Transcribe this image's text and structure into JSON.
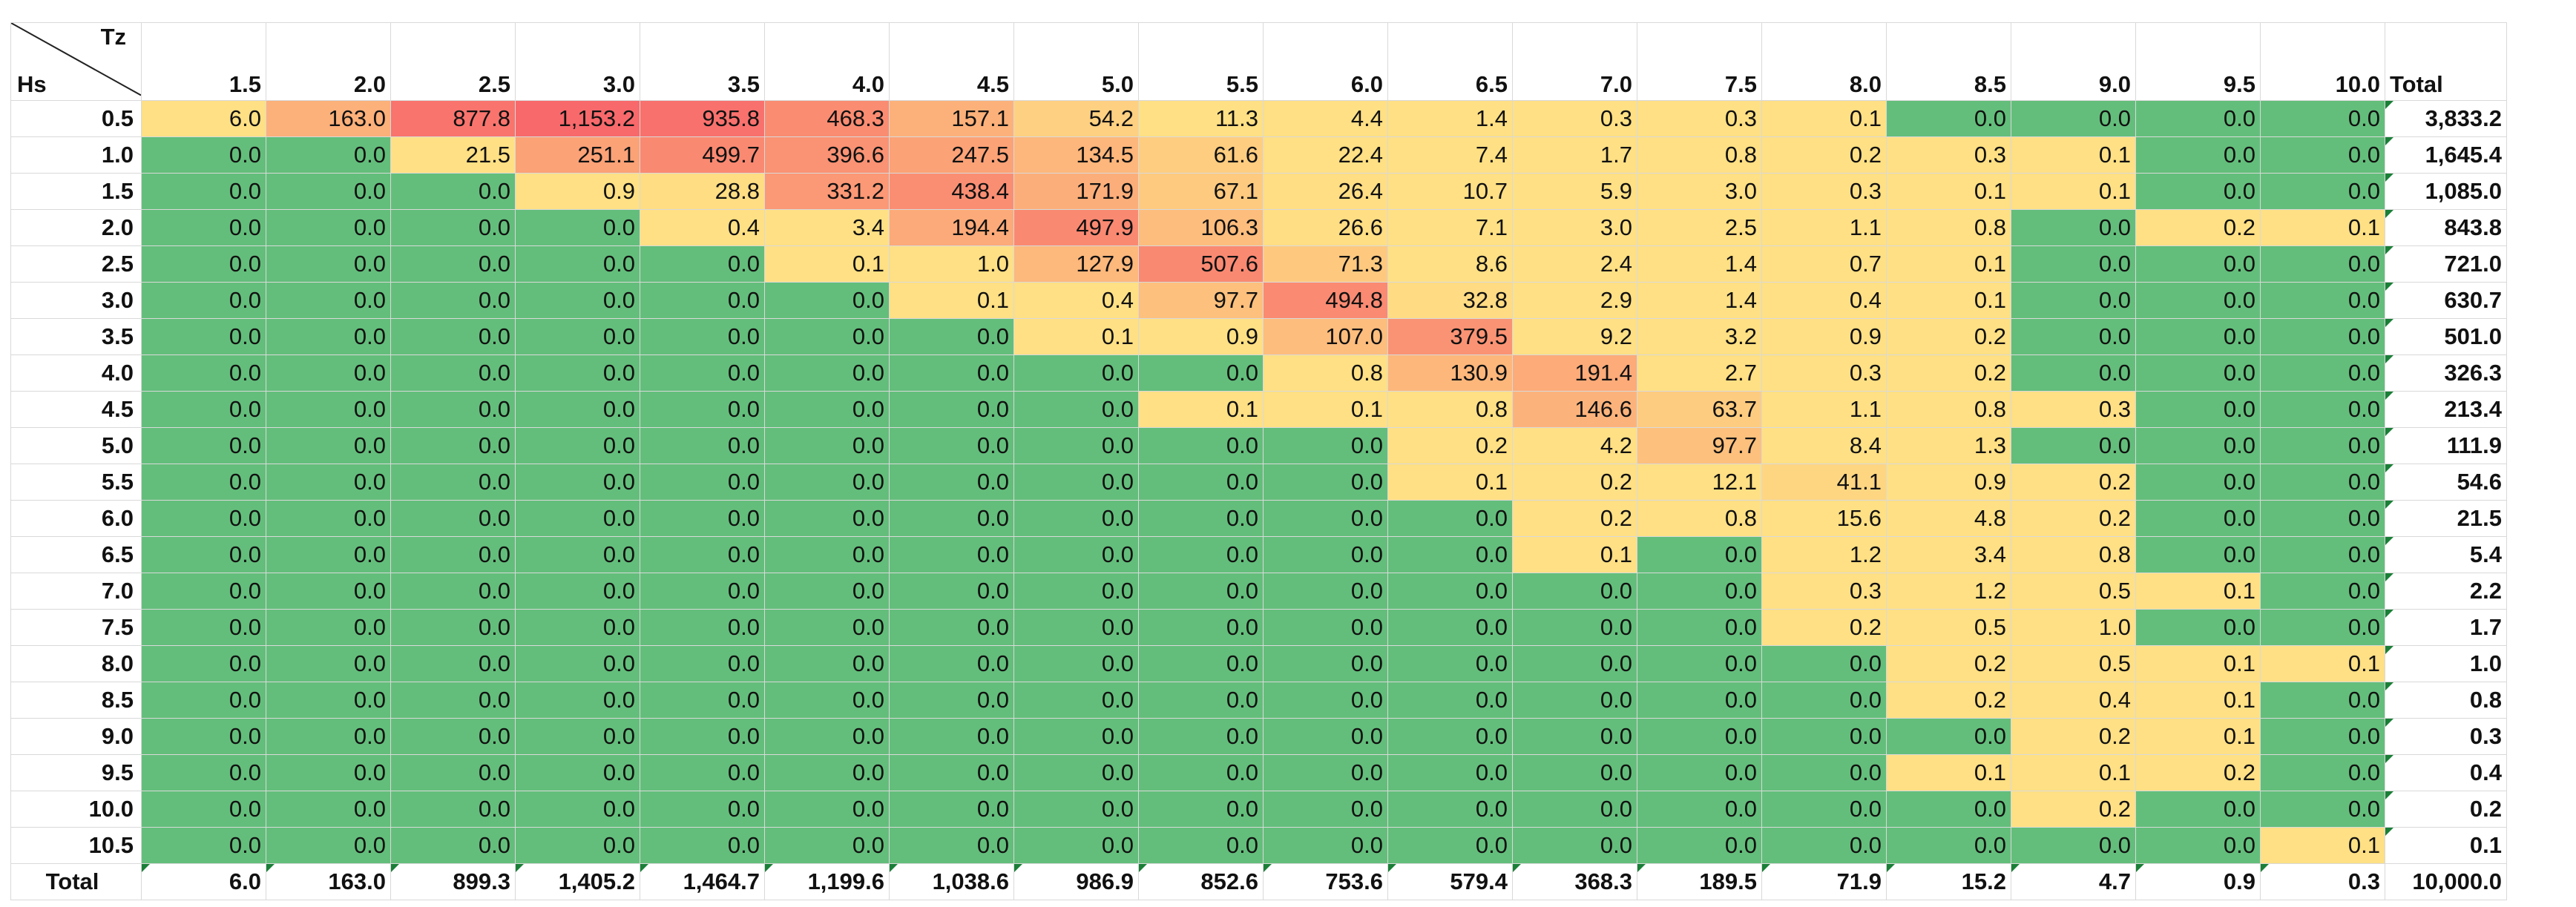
{
  "corner": {
    "col_label": "Tz",
    "row_label": "Hs"
  },
  "columns": [
    "1.5",
    "2.0",
    "2.5",
    "3.0",
    "3.5",
    "4.0",
    "4.5",
    "5.0",
    "5.5",
    "6.0",
    "6.5",
    "7.0",
    "7.5",
    "8.0",
    "8.5",
    "9.0",
    "9.5",
    "10.0"
  ],
  "total_label": "Total",
  "colors": {
    "green": "#63be7b",
    "yellow": "#ffe084",
    "red": "#f8696b"
  },
  "rows": [
    {
      "hs": "0.5",
      "v": [
        "6.0",
        "163.0",
        "877.8",
        "1,153.2",
        "935.8",
        "468.3",
        "157.1",
        "54.2",
        "11.3",
        "4.4",
        "1.4",
        "0.3",
        "0.3",
        "0.1",
        "0.0",
        "0.0",
        "0.0",
        "0.0"
      ],
      "total": "3,833.2"
    },
    {
      "hs": "1.0",
      "v": [
        "0.0",
        "0.0",
        "21.5",
        "251.1",
        "499.7",
        "396.6",
        "247.5",
        "134.5",
        "61.6",
        "22.4",
        "7.4",
        "1.7",
        "0.8",
        "0.2",
        "0.3",
        "0.1",
        "0.0",
        "0.0"
      ],
      "total": "1,645.4"
    },
    {
      "hs": "1.5",
      "v": [
        "0.0",
        "0.0",
        "0.0",
        "0.9",
        "28.8",
        "331.2",
        "438.4",
        "171.9",
        "67.1",
        "26.4",
        "10.7",
        "5.9",
        "3.0",
        "0.3",
        "0.1",
        "0.1",
        "0.0",
        "0.0"
      ],
      "total": "1,085.0"
    },
    {
      "hs": "2.0",
      "v": [
        "0.0",
        "0.0",
        "0.0",
        "0.0",
        "0.4",
        "3.4",
        "194.4",
        "497.9",
        "106.3",
        "26.6",
        "7.1",
        "3.0",
        "2.5",
        "1.1",
        "0.8",
        "0.0",
        "0.2",
        "0.1"
      ],
      "total": "843.8"
    },
    {
      "hs": "2.5",
      "v": [
        "0.0",
        "0.0",
        "0.0",
        "0.0",
        "0.0",
        "0.1",
        "1.0",
        "127.9",
        "507.6",
        "71.3",
        "8.6",
        "2.4",
        "1.4",
        "0.7",
        "0.1",
        "0.0",
        "0.0",
        "0.0"
      ],
      "total": "721.0"
    },
    {
      "hs": "3.0",
      "v": [
        "0.0",
        "0.0",
        "0.0",
        "0.0",
        "0.0",
        "0.0",
        "0.1",
        "0.4",
        "97.7",
        "494.8",
        "32.8",
        "2.9",
        "1.4",
        "0.4",
        "0.1",
        "0.0",
        "0.0",
        "0.0"
      ],
      "total": "630.7"
    },
    {
      "hs": "3.5",
      "v": [
        "0.0",
        "0.0",
        "0.0",
        "0.0",
        "0.0",
        "0.0",
        "0.0",
        "0.1",
        "0.9",
        "107.0",
        "379.5",
        "9.2",
        "3.2",
        "0.9",
        "0.2",
        "0.0",
        "0.0",
        "0.0"
      ],
      "total": "501.0"
    },
    {
      "hs": "4.0",
      "v": [
        "0.0",
        "0.0",
        "0.0",
        "0.0",
        "0.0",
        "0.0",
        "0.0",
        "0.0",
        "0.0",
        "0.8",
        "130.9",
        "191.4",
        "2.7",
        "0.3",
        "0.2",
        "0.0",
        "0.0",
        "0.0"
      ],
      "total": "326.3"
    },
    {
      "hs": "4.5",
      "v": [
        "0.0",
        "0.0",
        "0.0",
        "0.0",
        "0.0",
        "0.0",
        "0.0",
        "0.0",
        "0.1",
        "0.1",
        "0.8",
        "146.6",
        "63.7",
        "1.1",
        "0.8",
        "0.3",
        "0.0",
        "0.0"
      ],
      "total": "213.4"
    },
    {
      "hs": "5.0",
      "v": [
        "0.0",
        "0.0",
        "0.0",
        "0.0",
        "0.0",
        "0.0",
        "0.0",
        "0.0",
        "0.0",
        "0.0",
        "0.2",
        "4.2",
        "97.7",
        "8.4",
        "1.3",
        "0.0",
        "0.0",
        "0.0"
      ],
      "total": "111.9"
    },
    {
      "hs": "5.5",
      "v": [
        "0.0",
        "0.0",
        "0.0",
        "0.0",
        "0.0",
        "0.0",
        "0.0",
        "0.0",
        "0.0",
        "0.0",
        "0.1",
        "0.2",
        "12.1",
        "41.1",
        "0.9",
        "0.2",
        "0.0",
        "0.0"
      ],
      "total": "54.6"
    },
    {
      "hs": "6.0",
      "v": [
        "0.0",
        "0.0",
        "0.0",
        "0.0",
        "0.0",
        "0.0",
        "0.0",
        "0.0",
        "0.0",
        "0.0",
        "0.0",
        "0.2",
        "0.8",
        "15.6",
        "4.8",
        "0.2",
        "0.0",
        "0.0"
      ],
      "total": "21.5"
    },
    {
      "hs": "6.5",
      "v": [
        "0.0",
        "0.0",
        "0.0",
        "0.0",
        "0.0",
        "0.0",
        "0.0",
        "0.0",
        "0.0",
        "0.0",
        "0.0",
        "0.1",
        "0.0",
        "1.2",
        "3.4",
        "0.8",
        "0.0",
        "0.0"
      ],
      "total": "5.4"
    },
    {
      "hs": "7.0",
      "v": [
        "0.0",
        "0.0",
        "0.0",
        "0.0",
        "0.0",
        "0.0",
        "0.0",
        "0.0",
        "0.0",
        "0.0",
        "0.0",
        "0.0",
        "0.0",
        "0.3",
        "1.2",
        "0.5",
        "0.1",
        "0.0"
      ],
      "total": "2.2"
    },
    {
      "hs": "7.5",
      "v": [
        "0.0",
        "0.0",
        "0.0",
        "0.0",
        "0.0",
        "0.0",
        "0.0",
        "0.0",
        "0.0",
        "0.0",
        "0.0",
        "0.0",
        "0.0",
        "0.2",
        "0.5",
        "1.0",
        "0.0",
        "0.0"
      ],
      "total": "1.7"
    },
    {
      "hs": "8.0",
      "v": [
        "0.0",
        "0.0",
        "0.0",
        "0.0",
        "0.0",
        "0.0",
        "0.0",
        "0.0",
        "0.0",
        "0.0",
        "0.0",
        "0.0",
        "0.0",
        "0.0",
        "0.2",
        "0.5",
        "0.1",
        "0.1"
      ],
      "total": "1.0"
    },
    {
      "hs": "8.5",
      "v": [
        "0.0",
        "0.0",
        "0.0",
        "0.0",
        "0.0",
        "0.0",
        "0.0",
        "0.0",
        "0.0",
        "0.0",
        "0.0",
        "0.0",
        "0.0",
        "0.0",
        "0.2",
        "0.4",
        "0.1",
        "0.0"
      ],
      "total": "0.8"
    },
    {
      "hs": "9.0",
      "v": [
        "0.0",
        "0.0",
        "0.0",
        "0.0",
        "0.0",
        "0.0",
        "0.0",
        "0.0",
        "0.0",
        "0.0",
        "0.0",
        "0.0",
        "0.0",
        "0.0",
        "0.0",
        "0.2",
        "0.1",
        "0.0"
      ],
      "total": "0.3"
    },
    {
      "hs": "9.5",
      "v": [
        "0.0",
        "0.0",
        "0.0",
        "0.0",
        "0.0",
        "0.0",
        "0.0",
        "0.0",
        "0.0",
        "0.0",
        "0.0",
        "0.0",
        "0.0",
        "0.0",
        "0.1",
        "0.1",
        "0.2",
        "0.0"
      ],
      "total": "0.4"
    },
    {
      "hs": "10.0",
      "v": [
        "0.0",
        "0.0",
        "0.0",
        "0.0",
        "0.0",
        "0.0",
        "0.0",
        "0.0",
        "0.0",
        "0.0",
        "0.0",
        "0.0",
        "0.0",
        "0.0",
        "0.0",
        "0.2",
        "0.0",
        "0.0"
      ],
      "total": "0.2"
    },
    {
      "hs": "10.5",
      "v": [
        "0.0",
        "0.0",
        "0.0",
        "0.0",
        "0.0",
        "0.0",
        "0.0",
        "0.0",
        "0.0",
        "0.0",
        "0.0",
        "0.0",
        "0.0",
        "0.0",
        "0.0",
        "0.0",
        "0.0",
        "0.1"
      ],
      "total": "0.1"
    }
  ],
  "column_totals": [
    "6.0",
    "163.0",
    "899.3",
    "1,405.2",
    "1,464.7",
    "1,199.6",
    "1,038.6",
    "986.9",
    "852.6",
    "753.6",
    "579.4",
    "368.3",
    "189.5",
    "71.9",
    "15.2",
    "4.7",
    "0.9",
    "0.3"
  ],
  "grand_total": "10,000.0"
}
